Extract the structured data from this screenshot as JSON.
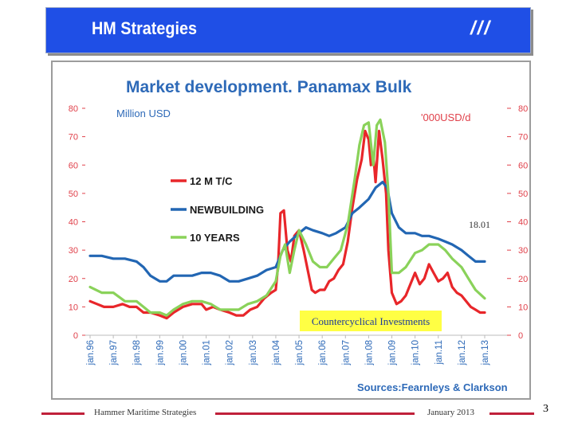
{
  "header": {
    "title": "HM Strategies",
    "mark": "///"
  },
  "footer": {
    "company": "Hammer Maritime Strategies",
    "date": "January 2013",
    "page": "3"
  },
  "colors": {
    "header_bg": "#1f4fe6",
    "title_blue": "#2e6ab8",
    "red": "#e8262a",
    "blue": "#2266b3",
    "green": "#8ad25a",
    "axis_red": "#e0404a",
    "footer_red": "#c0203a",
    "highlight": "#ffff44"
  },
  "chart_data": {
    "type": "line",
    "title": "Market development. Panamax Bulk",
    "left_axis_label": "Million USD",
    "right_axis_label": "'000USD/d",
    "ylim": [
      0,
      80
    ],
    "yticks": [
      0,
      10,
      20,
      30,
      40,
      50,
      60,
      70,
      80
    ],
    "xlim": [
      1996.0,
      2013.0
    ],
    "x_tick_labels": [
      "jan.96",
      "jan.97",
      "jan.98",
      "jan.99",
      "jan.00",
      "jan.01",
      "jan.02",
      "jan.03",
      "jan.04",
      "jan.05",
      "jan.06",
      "jan.07",
      "jan.08",
      "jan.09",
      "jan.10",
      "jan.11",
      "jan.12",
      "jan.13"
    ],
    "legend_placement": "center-left",
    "annotation_date": "18.01",
    "annotation_box": "Countercyclical  Investments",
    "source": "Sources:Fearnleys  & Clarkson",
    "series": [
      {
        "name": "12 M T/C",
        "color": "#e8262a",
        "x": [
          1996.0,
          1996.3,
          1996.6,
          1997.0,
          1997.4,
          1997.7,
          1998.0,
          1998.3,
          1998.6,
          1999.0,
          1999.3,
          1999.6,
          2000.0,
          2000.4,
          2000.8,
          2001.0,
          2001.3,
          2001.6,
          2002.0,
          2002.3,
          2002.6,
          2002.9,
          2003.2,
          2003.5,
          2003.8,
          2004.0,
          2004.1,
          2004.2,
          2004.35,
          2004.5,
          2004.65,
          2004.8,
          2005.0,
          2005.2,
          2005.4,
          2005.55,
          2005.7,
          2005.9,
          2006.1,
          2006.3,
          2006.5,
          2006.7,
          2006.9,
          2007.1,
          2007.3,
          2007.5,
          2007.7,
          2007.85,
          2008.0,
          2008.1,
          2008.2,
          2008.3,
          2008.45,
          2008.6,
          2008.75,
          2008.85,
          2009.0,
          2009.2,
          2009.4,
          2009.6,
          2009.8,
          2010.0,
          2010.2,
          2010.4,
          2010.6,
          2010.8,
          2011.0,
          2011.2,
          2011.4,
          2011.6,
          2011.8,
          2012.0,
          2012.2,
          2012.4,
          2012.6,
          2012.8,
          2013.0
        ],
        "values": [
          12,
          11,
          10,
          10,
          11,
          10,
          10,
          8,
          8,
          7,
          6,
          8,
          10,
          11,
          11,
          9,
          10,
          9,
          8,
          7,
          7,
          9,
          10,
          13,
          15,
          16,
          25,
          43,
          44,
          30,
          26,
          35,
          37,
          30,
          22,
          16,
          15,
          16,
          16,
          19,
          20,
          23,
          25,
          33,
          45,
          55,
          62,
          72,
          69,
          60,
          64,
          54,
          72,
          62,
          50,
          30,
          15,
          11,
          12,
          14,
          18,
          22,
          18,
          20,
          25,
          22,
          19,
          20,
          22,
          17,
          15,
          14,
          12,
          10,
          9,
          8,
          8
        ]
      },
      {
        "name": "NEWBUILDING",
        "color": "#2266b3",
        "x": [
          1996.0,
          1996.5,
          1997.0,
          1997.5,
          1998.0,
          1998.3,
          1998.6,
          1999.0,
          1999.3,
          1999.6,
          2000.0,
          2000.4,
          2000.8,
          2001.2,
          2001.6,
          2002.0,
          2002.4,
          2002.8,
          2003.2,
          2003.6,
          2004.0,
          2004.3,
          2004.6,
          2005.0,
          2005.3,
          2005.6,
          2006.0,
          2006.3,
          2006.6,
          2007.0,
          2007.3,
          2007.6,
          2008.0,
          2008.3,
          2008.6,
          2008.8,
          2009.0,
          2009.3,
          2009.6,
          2010.0,
          2010.3,
          2010.6,
          2011.0,
          2011.3,
          2011.6,
          2012.0,
          2012.3,
          2012.6,
          2013.0
        ],
        "values": [
          28,
          28,
          27,
          27,
          26,
          24,
          21,
          19,
          19,
          21,
          21,
          21,
          22,
          22,
          21,
          19,
          19,
          20,
          21,
          23,
          24,
          30,
          33,
          36,
          38,
          37,
          36,
          35,
          36,
          38,
          43,
          45,
          48,
          52,
          54,
          52,
          43,
          38,
          36,
          36,
          35,
          35,
          34,
          33,
          32,
          30,
          28,
          26,
          26
        ]
      },
      {
        "name": "10 YEARS",
        "color": "#8ad25a",
        "x": [
          1996.0,
          1996.5,
          1997.0,
          1997.5,
          1998.0,
          1998.3,
          1998.6,
          1999.0,
          1999.3,
          1999.6,
          2000.0,
          2000.4,
          2000.8,
          2001.2,
          2001.6,
          2002.0,
          2002.4,
          2002.8,
          2003.2,
          2003.6,
          2004.0,
          2004.2,
          2004.4,
          2004.6,
          2004.8,
          2005.0,
          2005.3,
          2005.6,
          2005.9,
          2006.2,
          2006.5,
          2006.8,
          2007.1,
          2007.4,
          2007.6,
          2007.8,
          2008.0,
          2008.2,
          2008.35,
          2008.5,
          2008.7,
          2008.85,
          2009.0,
          2009.3,
          2009.6,
          2010.0,
          2010.3,
          2010.6,
          2011.0,
          2011.3,
          2011.6,
          2012.0,
          2012.3,
          2012.6,
          2013.0
        ],
        "values": [
          17,
          15,
          15,
          12,
          12,
          10,
          8,
          8,
          7,
          9,
          11,
          12,
          12,
          11,
          9,
          9,
          9,
          11,
          12,
          14,
          19,
          28,
          32,
          22,
          30,
          37,
          32,
          26,
          24,
          24,
          27,
          30,
          39,
          55,
          67,
          74,
          75,
          60,
          74,
          76,
          68,
          50,
          22,
          22,
          24,
          29,
          30,
          32,
          32,
          30,
          27,
          24,
          20,
          16,
          13
        ]
      }
    ]
  }
}
